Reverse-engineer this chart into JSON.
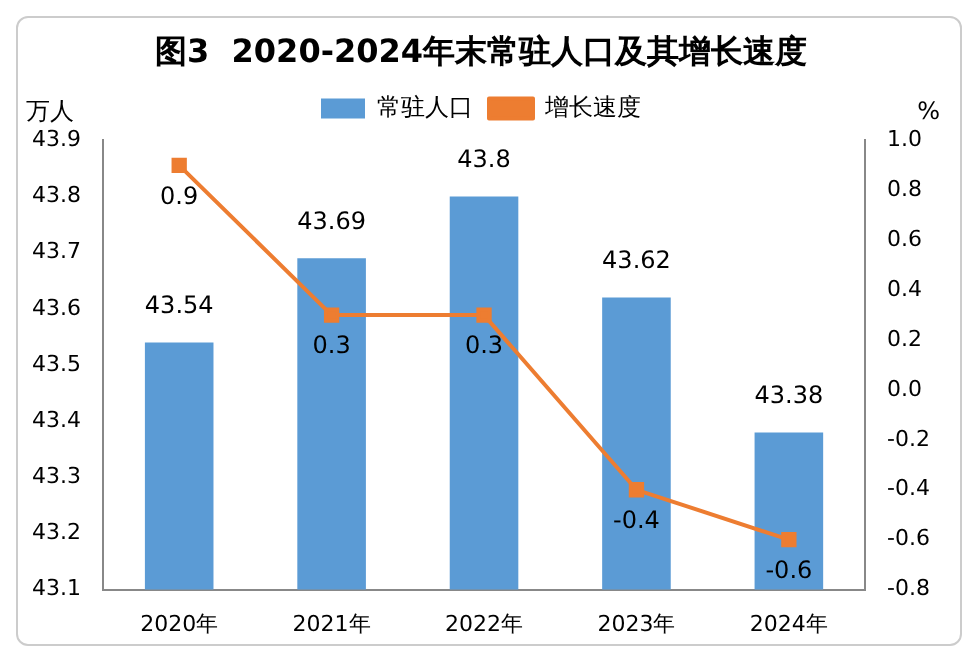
{
  "chart_data": {
    "type": "bar",
    "title": "图3  2020-2024年末常驻人口及其增长速度",
    "categories": [
      "2020年",
      "2021年",
      "2022年",
      "2023年",
      "2024年"
    ],
    "ylabel": "万人",
    "y2label": "%",
    "series": [
      {
        "name": "常驻人口",
        "color": "#5b9bd5",
        "values": [
          43.54,
          43.69,
          43.8,
          43.62,
          43.38
        ]
      },
      {
        "name": "增长速度",
        "type": "line",
        "axis": "y2",
        "color": "#ed7d31",
        "values": [
          0.9,
          0.3,
          0.3,
          -0.4,
          -0.6
        ]
      }
    ],
    "ylim": [
      43.1,
      43.9
    ],
    "yticks": [
      43.1,
      43.2,
      43.3,
      43.4,
      43.5,
      43.6,
      43.7,
      43.8,
      43.9
    ],
    "y2lim": [
      -0.8,
      1.0
    ],
    "y2ticks": [
      -0.8,
      -0.6,
      -0.4,
      -0.2,
      {
        "value": 0,
        "label": "0.0"
      },
      0.2,
      0.4,
      0.6,
      0.8,
      {
        "value": 1,
        "label": "1.0"
      }
    ],
    "legend": "top",
    "marker": "square",
    "line_style": "solid",
    "data_labels": true
  }
}
